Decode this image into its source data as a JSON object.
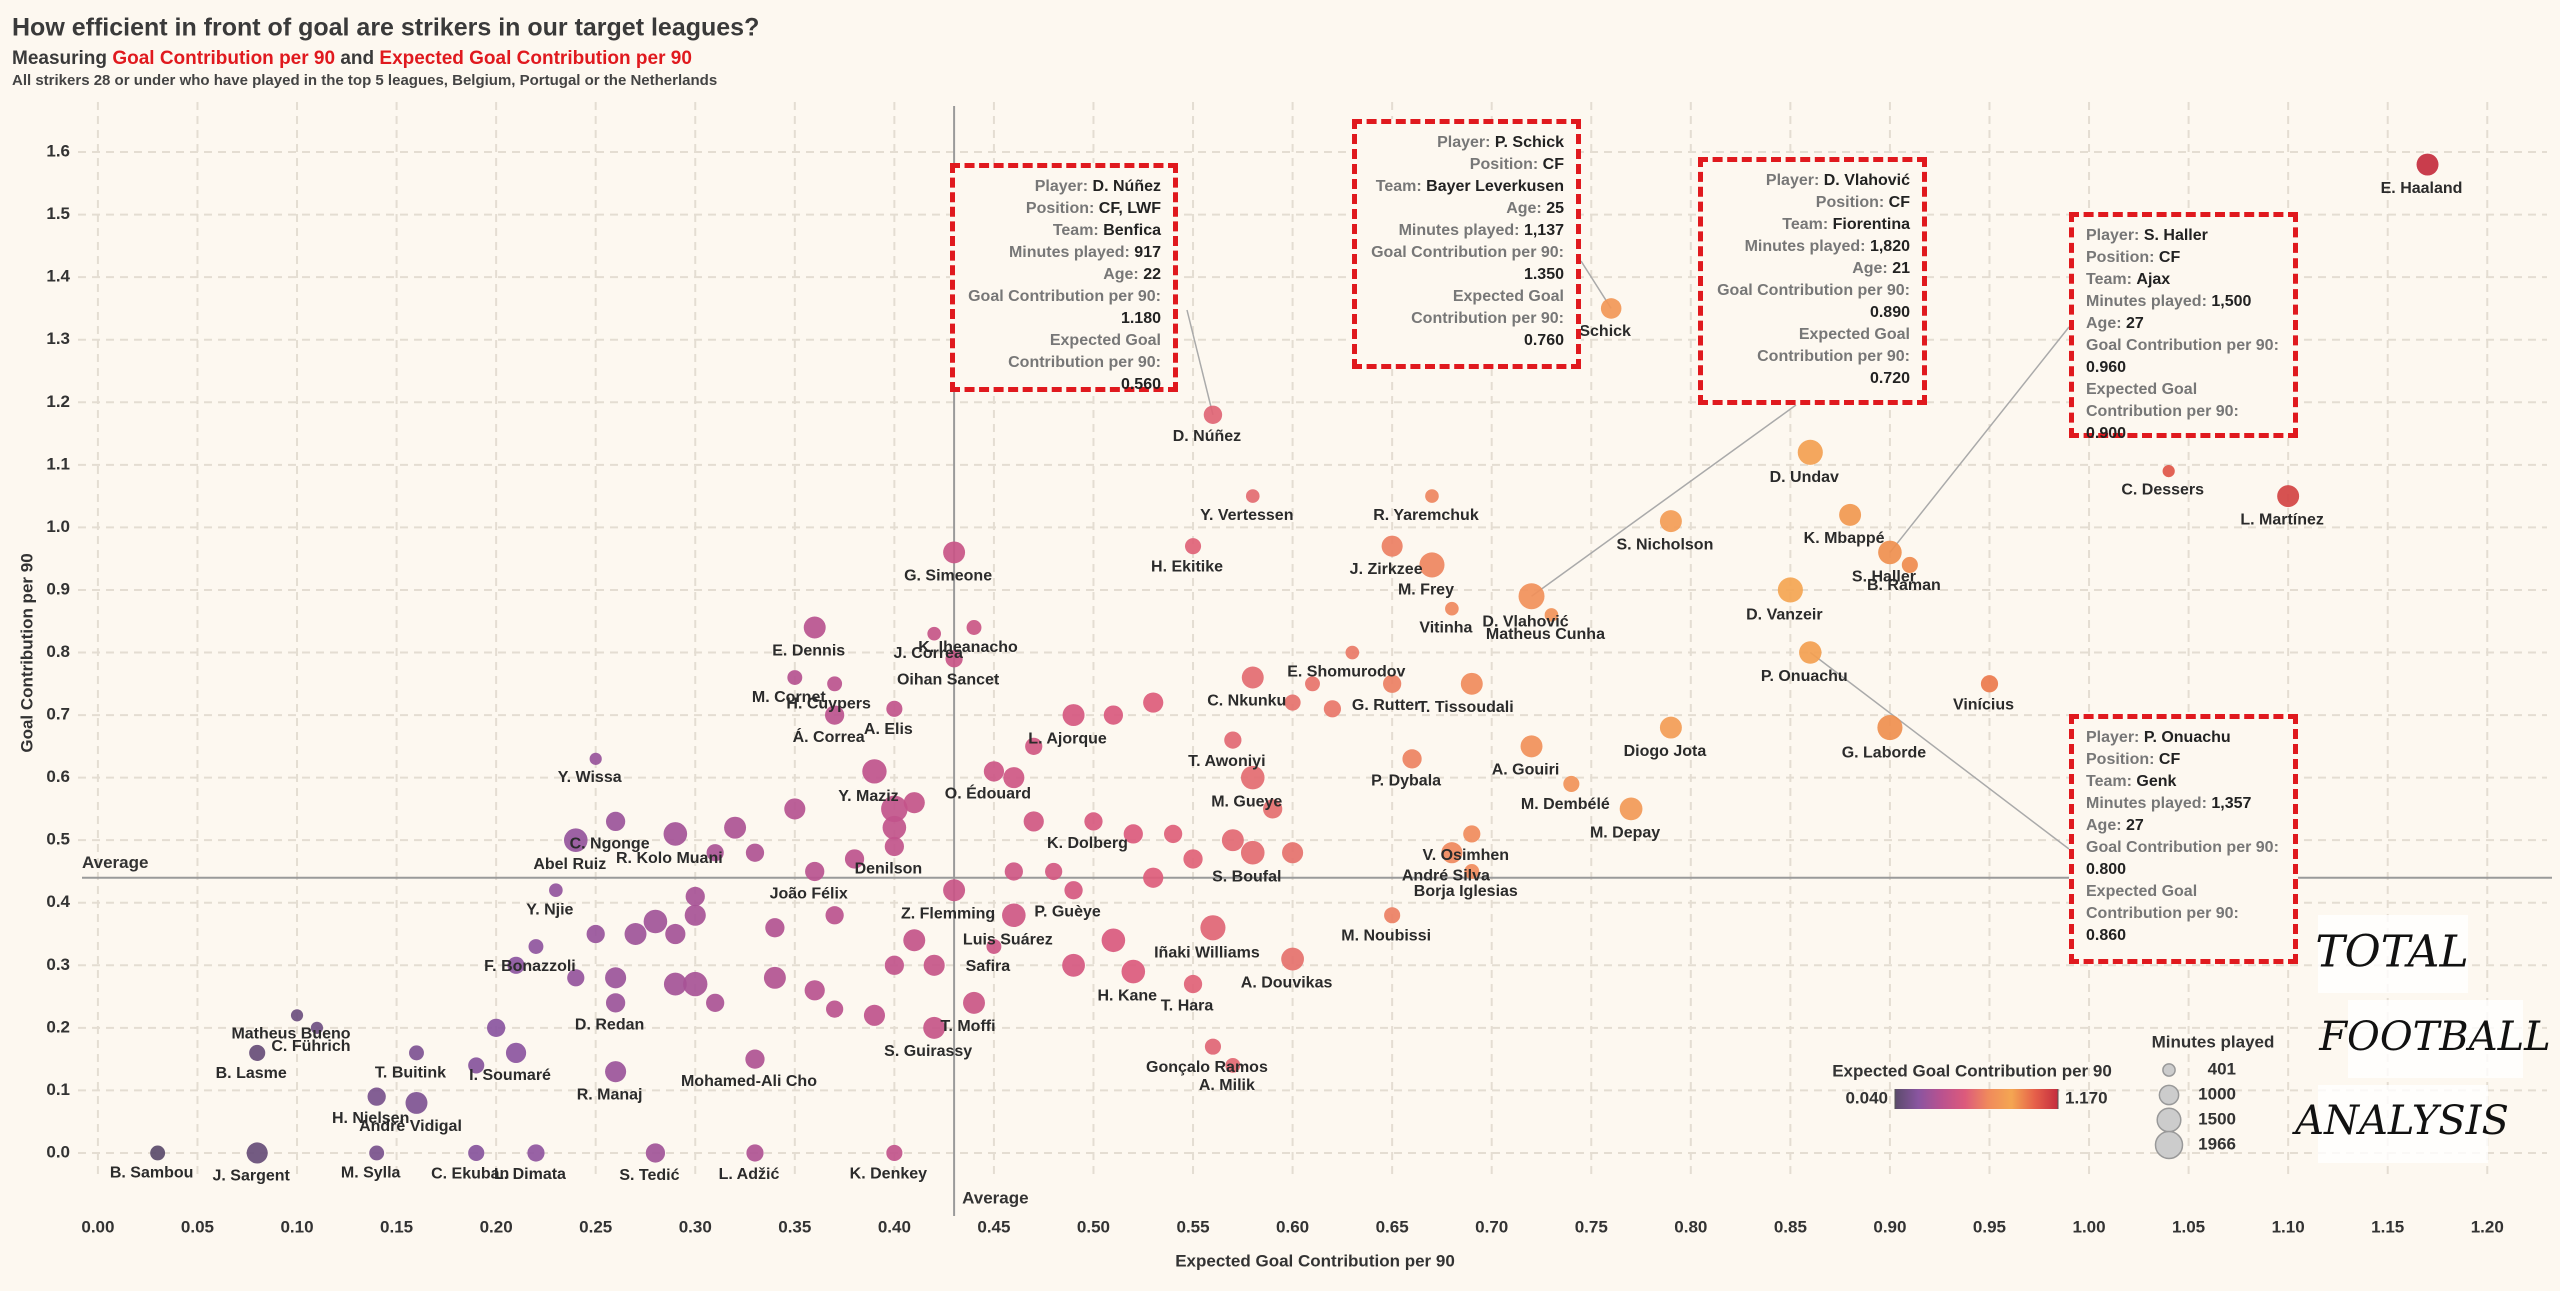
{
  "chart_data": {
    "type": "scatter",
    "title": "How efficient in front of goal are strikers in our target leagues?",
    "subtitle": [
      {
        "text": "Measuring "
      },
      {
        "text": "Goal Contribution per 90",
        "color": "#e0191e"
      },
      {
        "text": " and "
      },
      {
        "text": "Expected Goal Contribution per 90",
        "color": "#e0191e"
      }
    ],
    "note": "All strikers 28 or under who have played in the top 5 leagues, Belgium, Portugal or the Netherlands",
    "x_label": "Expected Goal Contribution per 90",
    "y_label": "Goal Contribution per 90",
    "xlim": [
      -0.01,
      1.23
    ],
    "ylim": [
      -0.04,
      1.68
    ],
    "xticks": [
      {
        "value": 0,
        "label": "0.00"
      },
      {
        "value": 0.05,
        "label": "0.05"
      },
      {
        "value": 0.1,
        "label": "0.10"
      },
      {
        "value": 0.15,
        "label": "0.15"
      },
      {
        "value": 0.2,
        "label": "0.20"
      },
      {
        "value": 0.25,
        "label": "0.25"
      },
      {
        "value": 0.3,
        "label": "0.30"
      },
      {
        "value": 0.35,
        "label": "0.35"
      },
      {
        "value": 0.4,
        "label": "0.40"
      },
      {
        "value": 0.45,
        "label": "0.45"
      },
      {
        "value": 0.5,
        "label": "0.50"
      },
      {
        "value": 0.55,
        "label": "0.55"
      },
      {
        "value": 0.6,
        "label": "0.60"
      },
      {
        "value": 0.65,
        "label": "0.65"
      },
      {
        "value": 0.7,
        "label": "0.70"
      },
      {
        "value": 0.75,
        "label": "0.75"
      },
      {
        "value": 0.8,
        "label": "0.80"
      },
      {
        "value": 0.85,
        "label": "0.85"
      },
      {
        "value": 0.9,
        "label": "0.90"
      },
      {
        "value": 0.95,
        "label": "0.95"
      },
      {
        "value": 1.0,
        "label": "1.00"
      },
      {
        "value": 1.05,
        "label": "1.05"
      },
      {
        "value": 1.1,
        "label": "1.10"
      },
      {
        "value": 1.15,
        "label": "1.15"
      },
      {
        "value": 1.2,
        "label": "1.20"
      }
    ],
    "yticks": [
      {
        "value": 0,
        "label": "0.0"
      },
      {
        "value": 0.1,
        "label": "0.1"
      },
      {
        "value": 0.2,
        "label": "0.2"
      },
      {
        "value": 0.3,
        "label": "0.3"
      },
      {
        "value": 0.4,
        "label": "0.4"
      },
      {
        "value": 0.5,
        "label": "0.5"
      },
      {
        "value": 0.6,
        "label": "0.6"
      },
      {
        "value": 0.7,
        "label": "0.7"
      },
      {
        "value": 0.8,
        "label": "0.8"
      },
      {
        "value": 0.9,
        "label": "0.9"
      },
      {
        "value": 1.0,
        "label": "1.0"
      },
      {
        "value": 1.1,
        "label": "1.1"
      },
      {
        "value": 1.2,
        "label": "1.2"
      },
      {
        "value": 1.3,
        "label": "1.3"
      },
      {
        "value": 1.4,
        "label": "1.4"
      },
      {
        "value": 1.5,
        "label": "1.5"
      },
      {
        "value": 1.6,
        "label": "1.6"
      }
    ],
    "grid": true,
    "average": {
      "x": 0.43,
      "y": 0.44,
      "label": "Average"
    },
    "points": {
      "names": [
        "E. Haaland",
        "C. Dessers",
        "L. Martínez",
        "D. Undav",
        "K. Mbappé",
        "S. Haller",
        "B. Raman",
        "D. Vanzeir",
        "P. Onuachu",
        "Vinícius",
        "G. Laborde",
        "S. Nicholson",
        "Schick",
        "D. Núñez",
        "D. Vlahović",
        "Matheus Cunha",
        "R. Yaremchuk",
        "J. Zirkzee",
        "M. Frey",
        "Vitinha",
        "Y. Vertessen",
        "H. Ekitike",
        "E. Shomurodov",
        "G. Simeone",
        "K. Iheanacho",
        "J. Correa",
        "E. Dennis",
        "M. Cornet",
        "H. Cuypers",
        "Oihan Sancet",
        "Á. Correa",
        "A. Elis",
        "C. Nkunku",
        "L. Ajorque",
        "G. Rutter",
        "T. Tissoudali",
        "T. Awoniyi",
        "M. Gueye",
        "O. Édouard",
        "Y. Maziz",
        "Y. Wissa",
        "C. Ngonge",
        "Abel Ruiz",
        "R. Kolo Muani",
        "K. Dolberg",
        "Denilson",
        "P. Dybala",
        "A. Gouiri",
        "Diogo Jota",
        "M. Dembélé",
        "M. Depay",
        "V. Osimhen",
        "André Silva",
        "S. Boufal",
        "Borja Iglesias",
        "M. Noubissi",
        "P. Guèye",
        "Z. Flemming",
        "João Félix",
        "Luis Suárez",
        "Iñaki Williams",
        "Safira",
        "Y. Njie",
        "F. Bonazzoli",
        "A. Douvikas",
        "H. Kane",
        "T. Hara",
        "T. Moffi",
        "Matheus Bueno",
        "C. Führich",
        "D. Redan",
        "B. Lasme",
        "T. Buitink",
        "H. Nielsen",
        "I. Soumaré",
        "R. Manaj",
        "Mohamed-Ali Cho",
        "Gonçalo Ramos",
        "S. Guirassy",
        "A. Milik",
        "André Vidigal",
        "B. Sambou",
        "J. Sargent",
        "M. Sylla",
        "C. Ekuban",
        "L. Dimata",
        "S. Tedić",
        "L. Adžić",
        "K. Denkey",
        null,
        null,
        null,
        null,
        null,
        null,
        null,
        null,
        null,
        null,
        null,
        null,
        null,
        null,
        null,
        null,
        null,
        null,
        null,
        null,
        null,
        null,
        null,
        null,
        null,
        null,
        null,
        null,
        null,
        null,
        null,
        null,
        null,
        null,
        null,
        null,
        null,
        null,
        null,
        null,
        null,
        null,
        null,
        null,
        null,
        null,
        null,
        null,
        null,
        null
      ],
      "x": [
        1.17,
        1.04,
        1.1,
        0.86,
        0.88,
        0.9,
        0.91,
        0.85,
        0.86,
        0.95,
        0.9,
        0.79,
        0.76,
        0.56,
        0.72,
        0.73,
        0.67,
        0.65,
        0.67,
        0.68,
        0.58,
        0.55,
        0.63,
        0.43,
        0.44,
        0.42,
        0.36,
        0.35,
        0.37,
        0.43,
        0.37,
        0.4,
        0.58,
        0.49,
        0.65,
        0.69,
        0.57,
        0.58,
        0.45,
        0.39,
        0.25,
        0.26,
        0.24,
        0.29,
        0.5,
        0.4,
        0.66,
        0.72,
        0.79,
        0.74,
        0.77,
        0.69,
        0.68,
        0.58,
        0.69,
        0.65,
        0.49,
        0.43,
        0.36,
        0.46,
        0.56,
        0.45,
        0.23,
        0.22,
        0.6,
        0.52,
        0.55,
        0.44,
        0.1,
        0.11,
        0.26,
        0.08,
        0.16,
        0.14,
        0.21,
        0.26,
        0.33,
        0.56,
        0.42,
        0.57,
        0.16,
        0.03,
        0.08,
        0.14,
        0.19,
        0.22,
        0.28,
        0.33,
        0.4,
        0.4,
        0.4,
        0.41,
        0.38,
        0.35,
        0.32,
        0.33,
        0.31,
        0.3,
        0.3,
        0.29,
        0.28,
        0.27,
        0.25,
        0.24,
        0.26,
        0.29,
        0.3,
        0.31,
        0.34,
        0.36,
        0.37,
        0.39,
        0.4,
        0.41,
        0.42,
        0.46,
        0.47,
        0.46,
        0.48,
        0.52,
        0.53,
        0.54,
        0.55,
        0.57,
        0.59,
        0.6,
        0.61,
        0.62,
        0.6,
        0.51,
        0.53,
        0.47,
        0.49,
        0.51,
        0.2,
        0.19,
        0.21,
        0.37,
        0.34
      ],
      "y": [
        1.58,
        1.09,
        1.05,
        1.12,
        1.02,
        0.96,
        0.94,
        0.9,
        0.8,
        0.75,
        0.68,
        1.01,
        1.35,
        1.18,
        0.89,
        0.86,
        1.05,
        0.97,
        0.94,
        0.87,
        1.05,
        0.97,
        0.8,
        0.96,
        0.84,
        0.83,
        0.84,
        0.76,
        0.75,
        0.79,
        0.7,
        0.71,
        0.76,
        0.7,
        0.75,
        0.75,
        0.66,
        0.6,
        0.61,
        0.61,
        0.63,
        0.53,
        0.5,
        0.51,
        0.53,
        0.49,
        0.63,
        0.65,
        0.68,
        0.59,
        0.55,
        0.51,
        0.48,
        0.48,
        0.45,
        0.38,
        0.42,
        0.42,
        0.45,
        0.38,
        0.36,
        0.33,
        0.42,
        0.33,
        0.31,
        0.29,
        0.27,
        0.24,
        0.22,
        0.2,
        0.24,
        0.16,
        0.16,
        0.09,
        0.16,
        0.13,
        0.15,
        0.17,
        0.2,
        0.14,
        0.08,
        0.0,
        0.0,
        0.0,
        0.0,
        0.0,
        0.0,
        0.0,
        0.0,
        0.55,
        0.52,
        0.56,
        0.47,
        0.55,
        0.52,
        0.48,
        0.48,
        0.41,
        0.38,
        0.35,
        0.37,
        0.35,
        0.35,
        0.28,
        0.28,
        0.27,
        0.27,
        0.24,
        0.28,
        0.26,
        0.23,
        0.22,
        0.3,
        0.34,
        0.3,
        0.45,
        0.53,
        0.6,
        0.45,
        0.51,
        0.44,
        0.51,
        0.47,
        0.5,
        0.55,
        0.48,
        0.75,
        0.71,
        0.72,
        0.7,
        0.72,
        0.65,
        0.3,
        0.34,
        0.2,
        0.14,
        0.3,
        0.38,
        0.36
      ],
      "minutes": [
        1300,
        401,
        1300,
        1700,
        1300,
        1500,
        700,
        1700,
        1357,
        800,
        1700,
        1300,
        1137,
        917,
        1820,
        500,
        500,
        1200,
        1700,
        500,
        500,
        700,
        500,
        1300,
        600,
        500,
        1300,
        600,
        600,
        800,
        1000,
        700,
        1300,
        1300,
        900,
        1300,
        800,
        1500,
        1100,
        1600,
        401,
        1000,
        1500,
        1500,
        900,
        1000,
        1000,
        1300,
        1300,
        700,
        1400,
        800,
        1200,
        1500,
        600,
        700,
        900,
        1300,
        1000,
        1500,
        1700,
        600,
        500,
        600,
        1400,
        1500,
        900,
        1300,
        401,
        401,
        1000,
        700,
        600,
        900,
        1100,
        1200,
        1000,
        700,
        1300,
        600,
        1300,
        600,
        1200,
        600,
        700,
        800,
        1000,
        800,
        700,
        1900,
        1500,
        1200,
        1000,
        1200,
        1300,
        900,
        800,
        1000,
        1200,
        1100,
        1500,
        1300,
        900,
        800,
        1200,
        1400,
        1600,
        900,
        1300,
        1100,
        800,
        1200,
        1000,
        1300,
        1200,
        900,
        1100,
        1200,
        800,
        1000,
        1100,
        900,
        1000,
        1300,
        1000,
        1200,
        600,
        800,
        700,
        1000,
        1100,
        800,
        1400,
        1500,
        900,
        700,
        800,
        900,
        1000
      ]
    },
    "annotations": [
      {
        "fields": [
          {
            "label": "Player:",
            "value": "D. Núñez"
          },
          {
            "label": "Position:",
            "value": "CF, LWF"
          },
          {
            "label": "Team:",
            "value": "Benfica"
          },
          {
            "label": "Minutes played:",
            "value": "917"
          },
          {
            "label": "Age:",
            "value": "22"
          },
          {
            "label": "Goal Contribution per 90:",
            "value": "1.180"
          },
          {
            "label": "Expected Goal Contribution per 90:",
            "value": "0.560"
          }
        ]
      },
      {
        "fields": [
          {
            "label": "Player:",
            "value": "P. Schick"
          },
          {
            "label": "Position:",
            "value": "CF"
          },
          {
            "label": "Team:",
            "value": "Bayer Leverkusen"
          },
          {
            "label": "Age:",
            "value": "25"
          },
          {
            "label": "Minutes played:",
            "value": "1,137"
          },
          {
            "label": "Goal Contribution per 90:",
            "value": "1.350"
          },
          {
            "label": "Expected Goal Contribution per 90:",
            "value": "0.760"
          }
        ]
      },
      {
        "fields": [
          {
            "label": "Player:",
            "value": "D. Vlahović"
          },
          {
            "label": "Position:",
            "value": "CF"
          },
          {
            "label": "Team:",
            "value": "Fiorentina"
          },
          {
            "label": "Minutes played:",
            "value": "1,820"
          },
          {
            "label": "Age:",
            "value": "21"
          },
          {
            "label": "Goal Contribution per 90:",
            "value": "0.890"
          },
          {
            "label": "Expected Goal Contribution per 90:",
            "value": "0.720"
          }
        ]
      },
      {
        "fields": [
          {
            "label": "Player:",
            "value": "S. Haller"
          },
          {
            "label": "Position:",
            "value": "CF"
          },
          {
            "label": "Team:",
            "value": "Ajax"
          },
          {
            "label": "Minutes played:",
            "value": "1,500"
          },
          {
            "label": "Age:",
            "value": "27"
          },
          {
            "label": "Goal Contribution per 90:",
            "value": "0.960"
          },
          {
            "label": "Expected Goal Contribution per 90:",
            "value": "0.900"
          }
        ]
      },
      {
        "fields": [
          {
            "label": "Player:",
            "value": "P. Onuachu"
          },
          {
            "label": "Position:",
            "value": "CF"
          },
          {
            "label": "Team:",
            "value": "Genk"
          },
          {
            "label": "Minutes played:",
            "value": "1,357"
          },
          {
            "label": "Age:",
            "value": "27"
          },
          {
            "label": "Goal Contribution per 90:",
            "value": "0.800"
          },
          {
            "label": "Expected Goal Contribution per 90:",
            "value": "0.860"
          }
        ]
      }
    ],
    "color_legend": {
      "title": "Expected Goal Contribution per 90",
      "ticks": [
        {
          "value": 0.04,
          "label": "0.040"
        },
        {
          "value": 1.17,
          "label": "1.170"
        }
      ],
      "colors": [
        "#5b4b6b",
        "#8a55a0",
        "#b9528f",
        "#dc5a7c",
        "#f08a5c",
        "#f4a652",
        "#e6604a",
        "#c42d3e"
      ]
    },
    "size_legend": {
      "title": "Minutes played",
      "values": [
        401,
        1000,
        1500,
        1966
      ]
    },
    "annotation_color": "#e0191e",
    "logo": [
      "TOTAL",
      "FOOTBALL",
      "ANALYSIS"
    ]
  }
}
